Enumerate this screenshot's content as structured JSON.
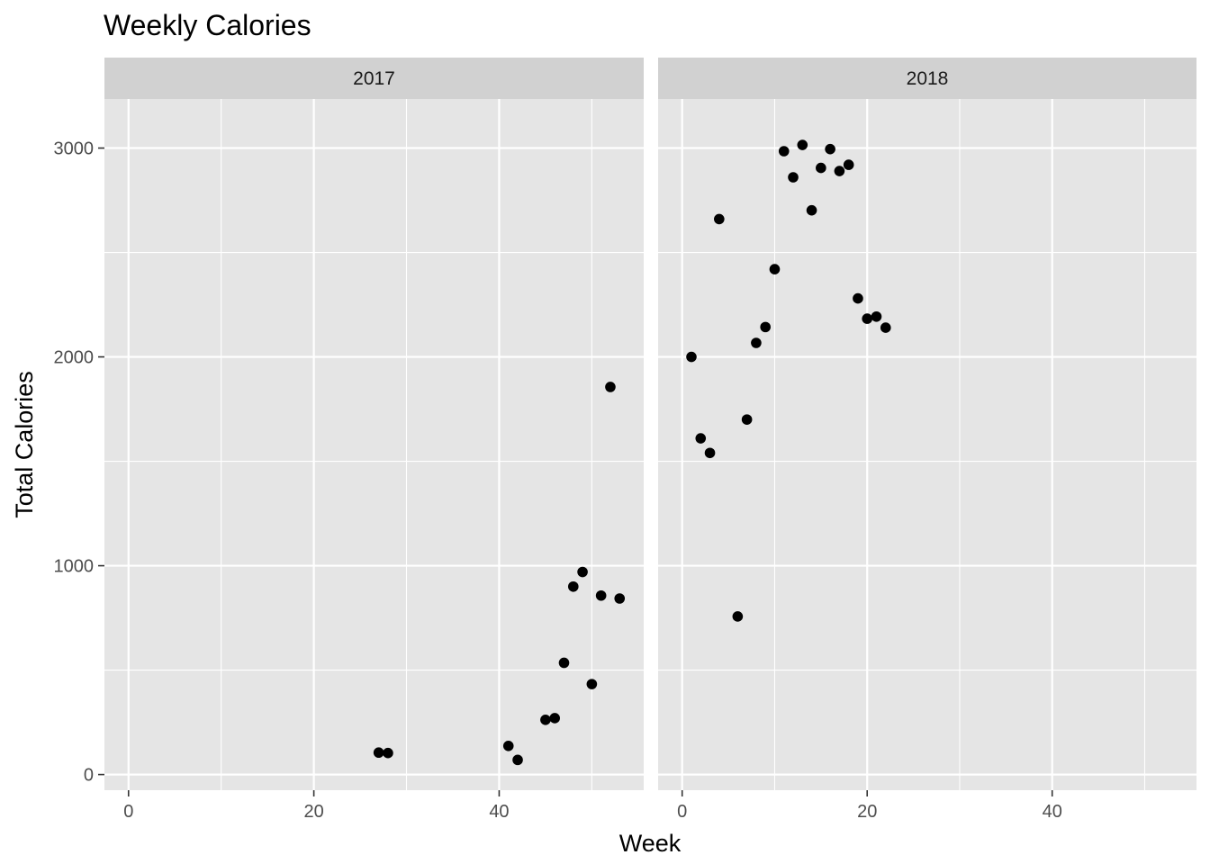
{
  "chart_data": {
    "type": "scatter",
    "title": "Weekly Calories",
    "xlabel": "Week",
    "ylabel": "Total Calories",
    "xlim": [
      -2.6,
      55.6
    ],
    "ylim": [
      -75,
      3235
    ],
    "x_ticks": [
      0,
      20,
      40
    ],
    "y_ticks": [
      0,
      1000,
      2000,
      3000
    ],
    "grid": true,
    "legend": "none",
    "point_color": "#000000",
    "panel_background": "#e5e5e5",
    "strip_background": "#d1d1d1",
    "grid_color": "#ffffff",
    "facets": [
      {
        "label": "2017",
        "points": [
          {
            "x": 27,
            "y": 105
          },
          {
            "x": 28,
            "y": 103
          },
          {
            "x": 41,
            "y": 137
          },
          {
            "x": 42,
            "y": 70
          },
          {
            "x": 45,
            "y": 262
          },
          {
            "x": 46,
            "y": 270
          },
          {
            "x": 47,
            "y": 535
          },
          {
            "x": 48,
            "y": 900
          },
          {
            "x": 49,
            "y": 970
          },
          {
            "x": 50,
            "y": 433
          },
          {
            "x": 51,
            "y": 857
          },
          {
            "x": 52,
            "y": 1856
          },
          {
            "x": 53,
            "y": 843
          }
        ]
      },
      {
        "label": "2018",
        "points": [
          {
            "x": 1,
            "y": 2000
          },
          {
            "x": 2,
            "y": 1610
          },
          {
            "x": 3,
            "y": 1540
          },
          {
            "x": 4,
            "y": 2660
          },
          {
            "x": 6,
            "y": 757
          },
          {
            "x": 7,
            "y": 1700
          },
          {
            "x": 8,
            "y": 2067
          },
          {
            "x": 9,
            "y": 2143
          },
          {
            "x": 10,
            "y": 2420
          },
          {
            "x": 11,
            "y": 2985
          },
          {
            "x": 12,
            "y": 2860
          },
          {
            "x": 13,
            "y": 3015
          },
          {
            "x": 14,
            "y": 2702
          },
          {
            "x": 15,
            "y": 2905
          },
          {
            "x": 16,
            "y": 2995
          },
          {
            "x": 17,
            "y": 2890
          },
          {
            "x": 18,
            "y": 2920
          },
          {
            "x": 19,
            "y": 2280
          },
          {
            "x": 20,
            "y": 2183
          },
          {
            "x": 21,
            "y": 2193
          },
          {
            "x": 22,
            "y": 2140
          }
        ]
      }
    ]
  }
}
